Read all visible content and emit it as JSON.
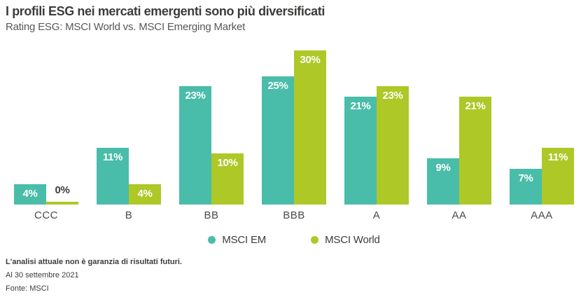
{
  "header": {
    "title": "I profili ESG nei mercati emergenti sono più diversificati",
    "subtitle": "Rating ESG: MSCI World vs. MSCI Emerging Market"
  },
  "chart_data": {
    "type": "bar",
    "title": "I profili ESG nei mercati emergenti sono più diversificati",
    "subtitle": "Rating ESG: MSCI World vs. MSCI Emerging Market",
    "categories": [
      "CCC",
      "B",
      "BB",
      "BBB",
      "A",
      "AA",
      "AAA"
    ],
    "series": [
      {
        "name": "MSCI EM",
        "color": "#49bda9",
        "values": [
          4,
          11,
          23,
          25,
          21,
          9,
          7
        ]
      },
      {
        "name": "MSCI World",
        "color": "#aec827",
        "values": [
          0,
          4,
          10,
          30,
          23,
          21,
          11
        ]
      }
    ],
    "value_suffix": "%",
    "xlabel": "",
    "ylabel": "",
    "ylim": [
      0,
      30
    ],
    "grid": false,
    "axes_visible": false,
    "data_labels": "inside-top, white bold; zero values labeled above bar in dark gray",
    "legend_position": "bottom-center"
  },
  "colors": {
    "series_em": "#49bda9",
    "series_world": "#aec827",
    "title_text": "#3c3c3b",
    "subtitle_text": "#575756",
    "category_text": "#4a4a49",
    "footer_text": "#3c3c3b"
  },
  "footer": {
    "disclaimer": "L'analisi attuale non è garanzia di risultati futuri.",
    "date": "Al 30 settembre 2021",
    "source": "Fonte: MSCI"
  }
}
